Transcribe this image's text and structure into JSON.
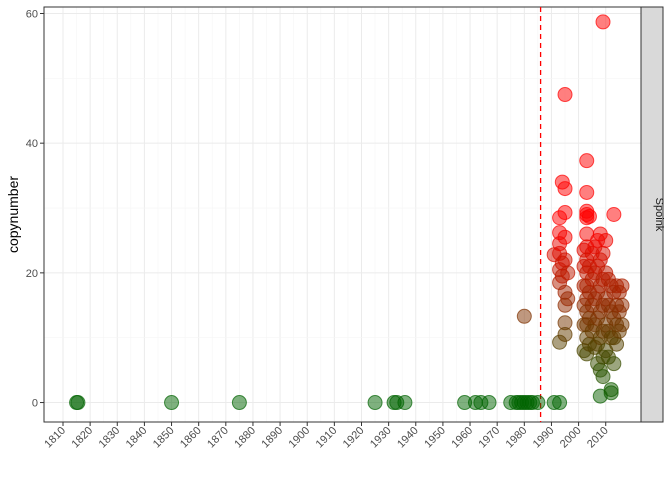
{
  "chart_data": {
    "type": "scatter",
    "title": "",
    "xlabel": "",
    "ylabel": "copynumber",
    "facet_label": "Spoink",
    "xlim": [
      1803,
      2023
    ],
    "ylim": [
      -3,
      61
    ],
    "x_ticks": [
      "1810",
      "1820",
      "1830",
      "1840",
      "1850",
      "1860",
      "1870",
      "1880",
      "1890",
      "1900",
      "1910",
      "1920",
      "1930",
      "1940",
      "1950",
      "1960",
      "1970",
      "1980",
      "1990",
      "2000",
      "2010"
    ],
    "y_ticks": [
      "0",
      "20",
      "40",
      "60"
    ],
    "vline_x": 1986,
    "vline_color": "#ff0000",
    "color_low": "#006400",
    "color_high": "#ff0000",
    "grid": true,
    "legend": "none",
    "points": [
      {
        "x": 1815,
        "y": 0
      },
      {
        "x": 1815.5,
        "y": 0
      },
      {
        "x": 1850,
        "y": 0
      },
      {
        "x": 1875,
        "y": 0
      },
      {
        "x": 1925,
        "y": 0
      },
      {
        "x": 1932,
        "y": 0
      },
      {
        "x": 1933,
        "y": 0
      },
      {
        "x": 1936,
        "y": 0
      },
      {
        "x": 1958,
        "y": 0
      },
      {
        "x": 1962,
        "y": 0
      },
      {
        "x": 1964,
        "y": 0
      },
      {
        "x": 1967,
        "y": 0
      },
      {
        "x": 1975,
        "y": 0
      },
      {
        "x": 1977,
        "y": 0
      },
      {
        "x": 1978,
        "y": 0
      },
      {
        "x": 1979,
        "y": 0
      },
      {
        "x": 1980,
        "y": 0
      },
      {
        "x": 1981,
        "y": 0
      },
      {
        "x": 1982,
        "y": 0
      },
      {
        "x": 1983,
        "y": 0
      },
      {
        "x": 1985,
        "y": 0
      },
      {
        "x": 1991,
        "y": 0
      },
      {
        "x": 1993,
        "y": 0
      },
      {
        "x": 1980,
        "y": 13.3
      },
      {
        "x": 1991,
        "y": 22.8
      },
      {
        "x": 1993,
        "y": 9.3
      },
      {
        "x": 1993,
        "y": 18.5
      },
      {
        "x": 1993,
        "y": 20.5
      },
      {
        "x": 1993,
        "y": 23
      },
      {
        "x": 1993,
        "y": 24.5
      },
      {
        "x": 1993,
        "y": 26.2
      },
      {
        "x": 1993,
        "y": 28.5
      },
      {
        "x": 1994,
        "y": 34
      },
      {
        "x": 1994,
        "y": 19.5
      },
      {
        "x": 1994,
        "y": 21.5
      },
      {
        "x": 1995,
        "y": 47.5
      },
      {
        "x": 1995,
        "y": 33
      },
      {
        "x": 1995,
        "y": 29.3
      },
      {
        "x": 1995,
        "y": 25.5
      },
      {
        "x": 1995,
        "y": 22
      },
      {
        "x": 1995,
        "y": 17
      },
      {
        "x": 1995,
        "y": 15
      },
      {
        "x": 1995,
        "y": 12.3
      },
      {
        "x": 1995,
        "y": 10.5
      },
      {
        "x": 1996,
        "y": 20
      },
      {
        "x": 1996,
        "y": 16
      },
      {
        "x": 2002,
        "y": 8
      },
      {
        "x": 2002,
        "y": 12
      },
      {
        "x": 2002,
        "y": 15
      },
      {
        "x": 2002,
        "y": 18
      },
      {
        "x": 2002,
        "y": 21
      },
      {
        "x": 2002,
        "y": 23.5
      },
      {
        "x": 2003,
        "y": 37.3
      },
      {
        "x": 2003,
        "y": 32.4
      },
      {
        "x": 2003,
        "y": 29.5
      },
      {
        "x": 2003,
        "y": 29
      },
      {
        "x": 2003,
        "y": 28.5
      },
      {
        "x": 2003,
        "y": 26
      },
      {
        "x": 2003,
        "y": 24
      },
      {
        "x": 2003,
        "y": 22
      },
      {
        "x": 2003,
        "y": 20
      },
      {
        "x": 2003,
        "y": 18
      },
      {
        "x": 2003,
        "y": 16
      },
      {
        "x": 2003,
        "y": 14
      },
      {
        "x": 2003,
        "y": 12
      },
      {
        "x": 2003,
        "y": 10
      },
      {
        "x": 2003,
        "y": 7.5
      },
      {
        "x": 2004,
        "y": 28.7
      },
      {
        "x": 2004,
        "y": 21
      },
      {
        "x": 2004,
        "y": 17
      },
      {
        "x": 2004,
        "y": 13
      },
      {
        "x": 2004,
        "y": 9
      },
      {
        "x": 2005,
        "y": 23
      },
      {
        "x": 2005,
        "y": 19
      },
      {
        "x": 2005,
        "y": 15
      },
      {
        "x": 2005,
        "y": 11
      },
      {
        "x": 2006,
        "y": 24
      },
      {
        "x": 2006,
        "y": 20
      },
      {
        "x": 2006,
        "y": 16
      },
      {
        "x": 2006,
        "y": 12
      },
      {
        "x": 2006,
        "y": 8.5
      },
      {
        "x": 2007,
        "y": 25
      },
      {
        "x": 2007,
        "y": 21
      },
      {
        "x": 2007,
        "y": 17
      },
      {
        "x": 2007,
        "y": 13
      },
      {
        "x": 2007,
        "y": 9
      },
      {
        "x": 2007,
        "y": 6
      },
      {
        "x": 2008,
        "y": 1
      },
      {
        "x": 2008,
        "y": 5
      },
      {
        "x": 2008,
        "y": 10
      },
      {
        "x": 2008,
        "y": 14
      },
      {
        "x": 2008,
        "y": 18
      },
      {
        "x": 2008,
        "y": 22
      },
      {
        "x": 2008,
        "y": 26
      },
      {
        "x": 2009,
        "y": 58.7
      },
      {
        "x": 2009,
        "y": 4
      },
      {
        "x": 2009,
        "y": 7
      },
      {
        "x": 2009,
        "y": 11
      },
      {
        "x": 2009,
        "y": 15
      },
      {
        "x": 2009,
        "y": 19
      },
      {
        "x": 2009,
        "y": 23
      },
      {
        "x": 2010,
        "y": 25
      },
      {
        "x": 2010,
        "y": 20
      },
      {
        "x": 2010,
        "y": 16
      },
      {
        "x": 2010,
        "y": 12
      },
      {
        "x": 2010,
        "y": 8
      },
      {
        "x": 2011,
        "y": 19
      },
      {
        "x": 2011,
        "y": 15
      },
      {
        "x": 2011,
        "y": 11
      },
      {
        "x": 2011,
        "y": 7
      },
      {
        "x": 2012,
        "y": 1.5
      },
      {
        "x": 2012,
        "y": 2
      },
      {
        "x": 2012,
        "y": 18
      },
      {
        "x": 2012,
        "y": 14
      },
      {
        "x": 2012,
        "y": 10
      },
      {
        "x": 2013,
        "y": 29
      },
      {
        "x": 2013,
        "y": 6
      },
      {
        "x": 2013,
        "y": 10
      },
      {
        "x": 2013,
        "y": 13
      },
      {
        "x": 2013,
        "y": 17
      },
      {
        "x": 2014,
        "y": 18
      },
      {
        "x": 2014,
        "y": 15
      },
      {
        "x": 2014,
        "y": 12
      },
      {
        "x": 2014,
        "y": 9
      },
      {
        "x": 2015,
        "y": 17
      },
      {
        "x": 2015,
        "y": 14
      },
      {
        "x": 2015,
        "y": 11
      },
      {
        "x": 2016,
        "y": 18
      },
      {
        "x": 2016,
        "y": 15
      },
      {
        "x": 2016,
        "y": 12
      }
    ]
  }
}
